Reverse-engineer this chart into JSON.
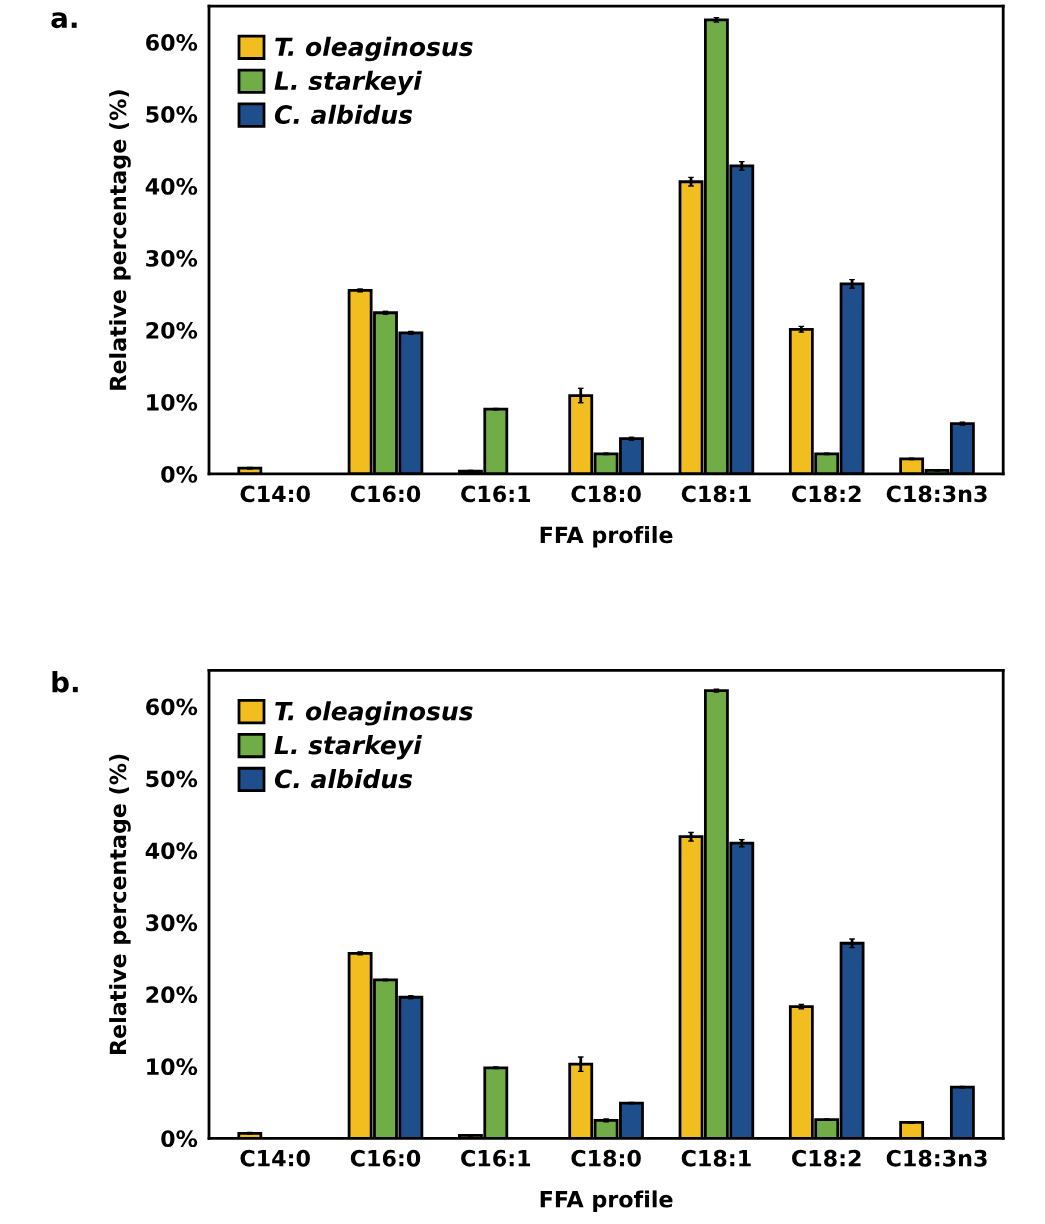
{
  "chart_data": [
    {
      "type": "bar",
      "title": "a.",
      "xlabel": "FFA profile",
      "ylabel": "Relative percentage (%)",
      "categories": [
        "C14:0",
        "C16:0",
        "C16:1",
        "C18:0",
        "C18:1",
        "C18:2",
        "C18:3n3"
      ],
      "series": [
        {
          "name": "T. oleaginosus",
          "color": "#f2bd1f",
          "values": [
            0.8,
            25.5,
            0.4,
            10.9,
            40.6,
            20.1,
            2.1
          ],
          "errors": [
            0.1,
            0.2,
            0.1,
            1.0,
            0.6,
            0.4,
            0.1
          ]
        },
        {
          "name": "L. starkeyi",
          "color": "#70ad47",
          "values": [
            null,
            22.4,
            9.0,
            2.8,
            63.1,
            2.8,
            0.5
          ],
          "errors": [
            null,
            0.2,
            0.1,
            0.1,
            0.3,
            0.1,
            0.1
          ]
        },
        {
          "name": "C. albidus",
          "color": "#1f4e8c",
          "values": [
            null,
            19.6,
            null,
            4.9,
            42.8,
            26.4,
            7.0
          ],
          "errors": [
            null,
            0.2,
            null,
            0.2,
            0.6,
            0.6,
            0.2
          ]
        }
      ],
      "ylim": [
        0,
        65
      ],
      "yticks": [
        {
          "value": 0,
          "label": "0%"
        },
        {
          "value": 10,
          "label": "10%"
        },
        {
          "value": 20,
          "label": "20%"
        },
        {
          "value": 30,
          "label": "30%"
        },
        {
          "value": 40,
          "label": "40%"
        },
        {
          "value": 50,
          "label": "50%"
        },
        {
          "value": 60,
          "label": "60%"
        }
      ],
      "legend": "top left",
      "grid": false
    },
    {
      "type": "bar",
      "title": "b.",
      "xlabel": "FFA profile",
      "ylabel": "Relative percentage (%)",
      "categories": [
        "C14:0",
        "C16:0",
        "C16:1",
        "C18:0",
        "C18:1",
        "C18:2",
        "C18:3n3"
      ],
      "series": [
        {
          "name": "T. oleaginosus",
          "color": "#f2bd1f",
          "values": [
            0.7,
            25.7,
            0.4,
            10.3,
            41.9,
            18.3,
            2.2
          ],
          "errors": [
            0.1,
            0.2,
            0.1,
            1.0,
            0.6,
            0.3,
            0.1
          ]
        },
        {
          "name": "L. starkeyi",
          "color": "#70ad47",
          "values": [
            null,
            22.0,
            9.8,
            2.5,
            62.2,
            2.6,
            null
          ],
          "errors": [
            null,
            0.1,
            0.1,
            0.2,
            0.2,
            0.1,
            null
          ]
        },
        {
          "name": "C. albidus",
          "color": "#1f4e8c",
          "values": [
            null,
            19.6,
            null,
            4.9,
            41.0,
            27.1,
            7.1
          ],
          "errors": [
            null,
            0.2,
            null,
            0.1,
            0.5,
            0.6,
            0.1
          ]
        }
      ],
      "ylim": [
        0,
        65
      ],
      "yticks": [
        {
          "value": 0,
          "label": "0%"
        },
        {
          "value": 10,
          "label": "10%"
        },
        {
          "value": 20,
          "label": "20%"
        },
        {
          "value": 30,
          "label": "30%"
        },
        {
          "value": 40,
          "label": "40%"
        },
        {
          "value": 50,
          "label": "50%"
        },
        {
          "value": 60,
          "label": "60%"
        }
      ],
      "legend": "top left",
      "grid": false
    }
  ]
}
